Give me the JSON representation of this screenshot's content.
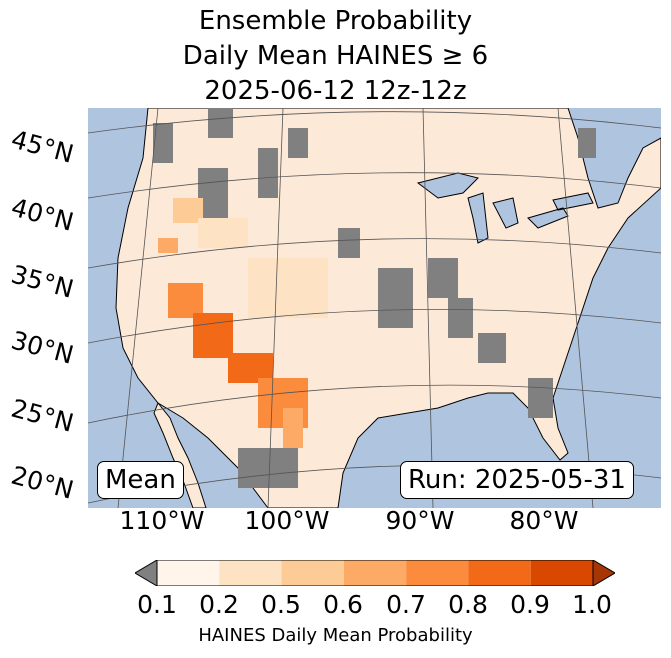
{
  "title": {
    "line1": "Ensemble Probability",
    "line2": "Daily Mean HAINES ≥ 6",
    "line3": "2025-06-12 12z-12z"
  },
  "map": {
    "ocean_color": "#afc4df",
    "land_base_color": "#fde9d8",
    "missing_color": "#808080",
    "lon_labels": [
      "110°W",
      "100°W",
      "90°W",
      "80°W"
    ],
    "lat_labels": [
      "45°N",
      "40°N",
      "35°N",
      "30°N",
      "25°N",
      "20°N"
    ],
    "stat_label": "Mean",
    "run_label": "Run: 2025-05-31"
  },
  "colorbar": {
    "ticks": [
      "0.1",
      "0.2",
      "0.5",
      "0.6",
      "0.7",
      "0.8",
      "0.9",
      "1.0"
    ],
    "colors": [
      "#fff5eb",
      "#fde2c4",
      "#fdcb95",
      "#fdaa67",
      "#fb8b3d",
      "#f26a18",
      "#d94801"
    ],
    "under_color": "#808080",
    "over_color": "#a63603",
    "label": "HAINES Daily Mean Probability"
  }
}
